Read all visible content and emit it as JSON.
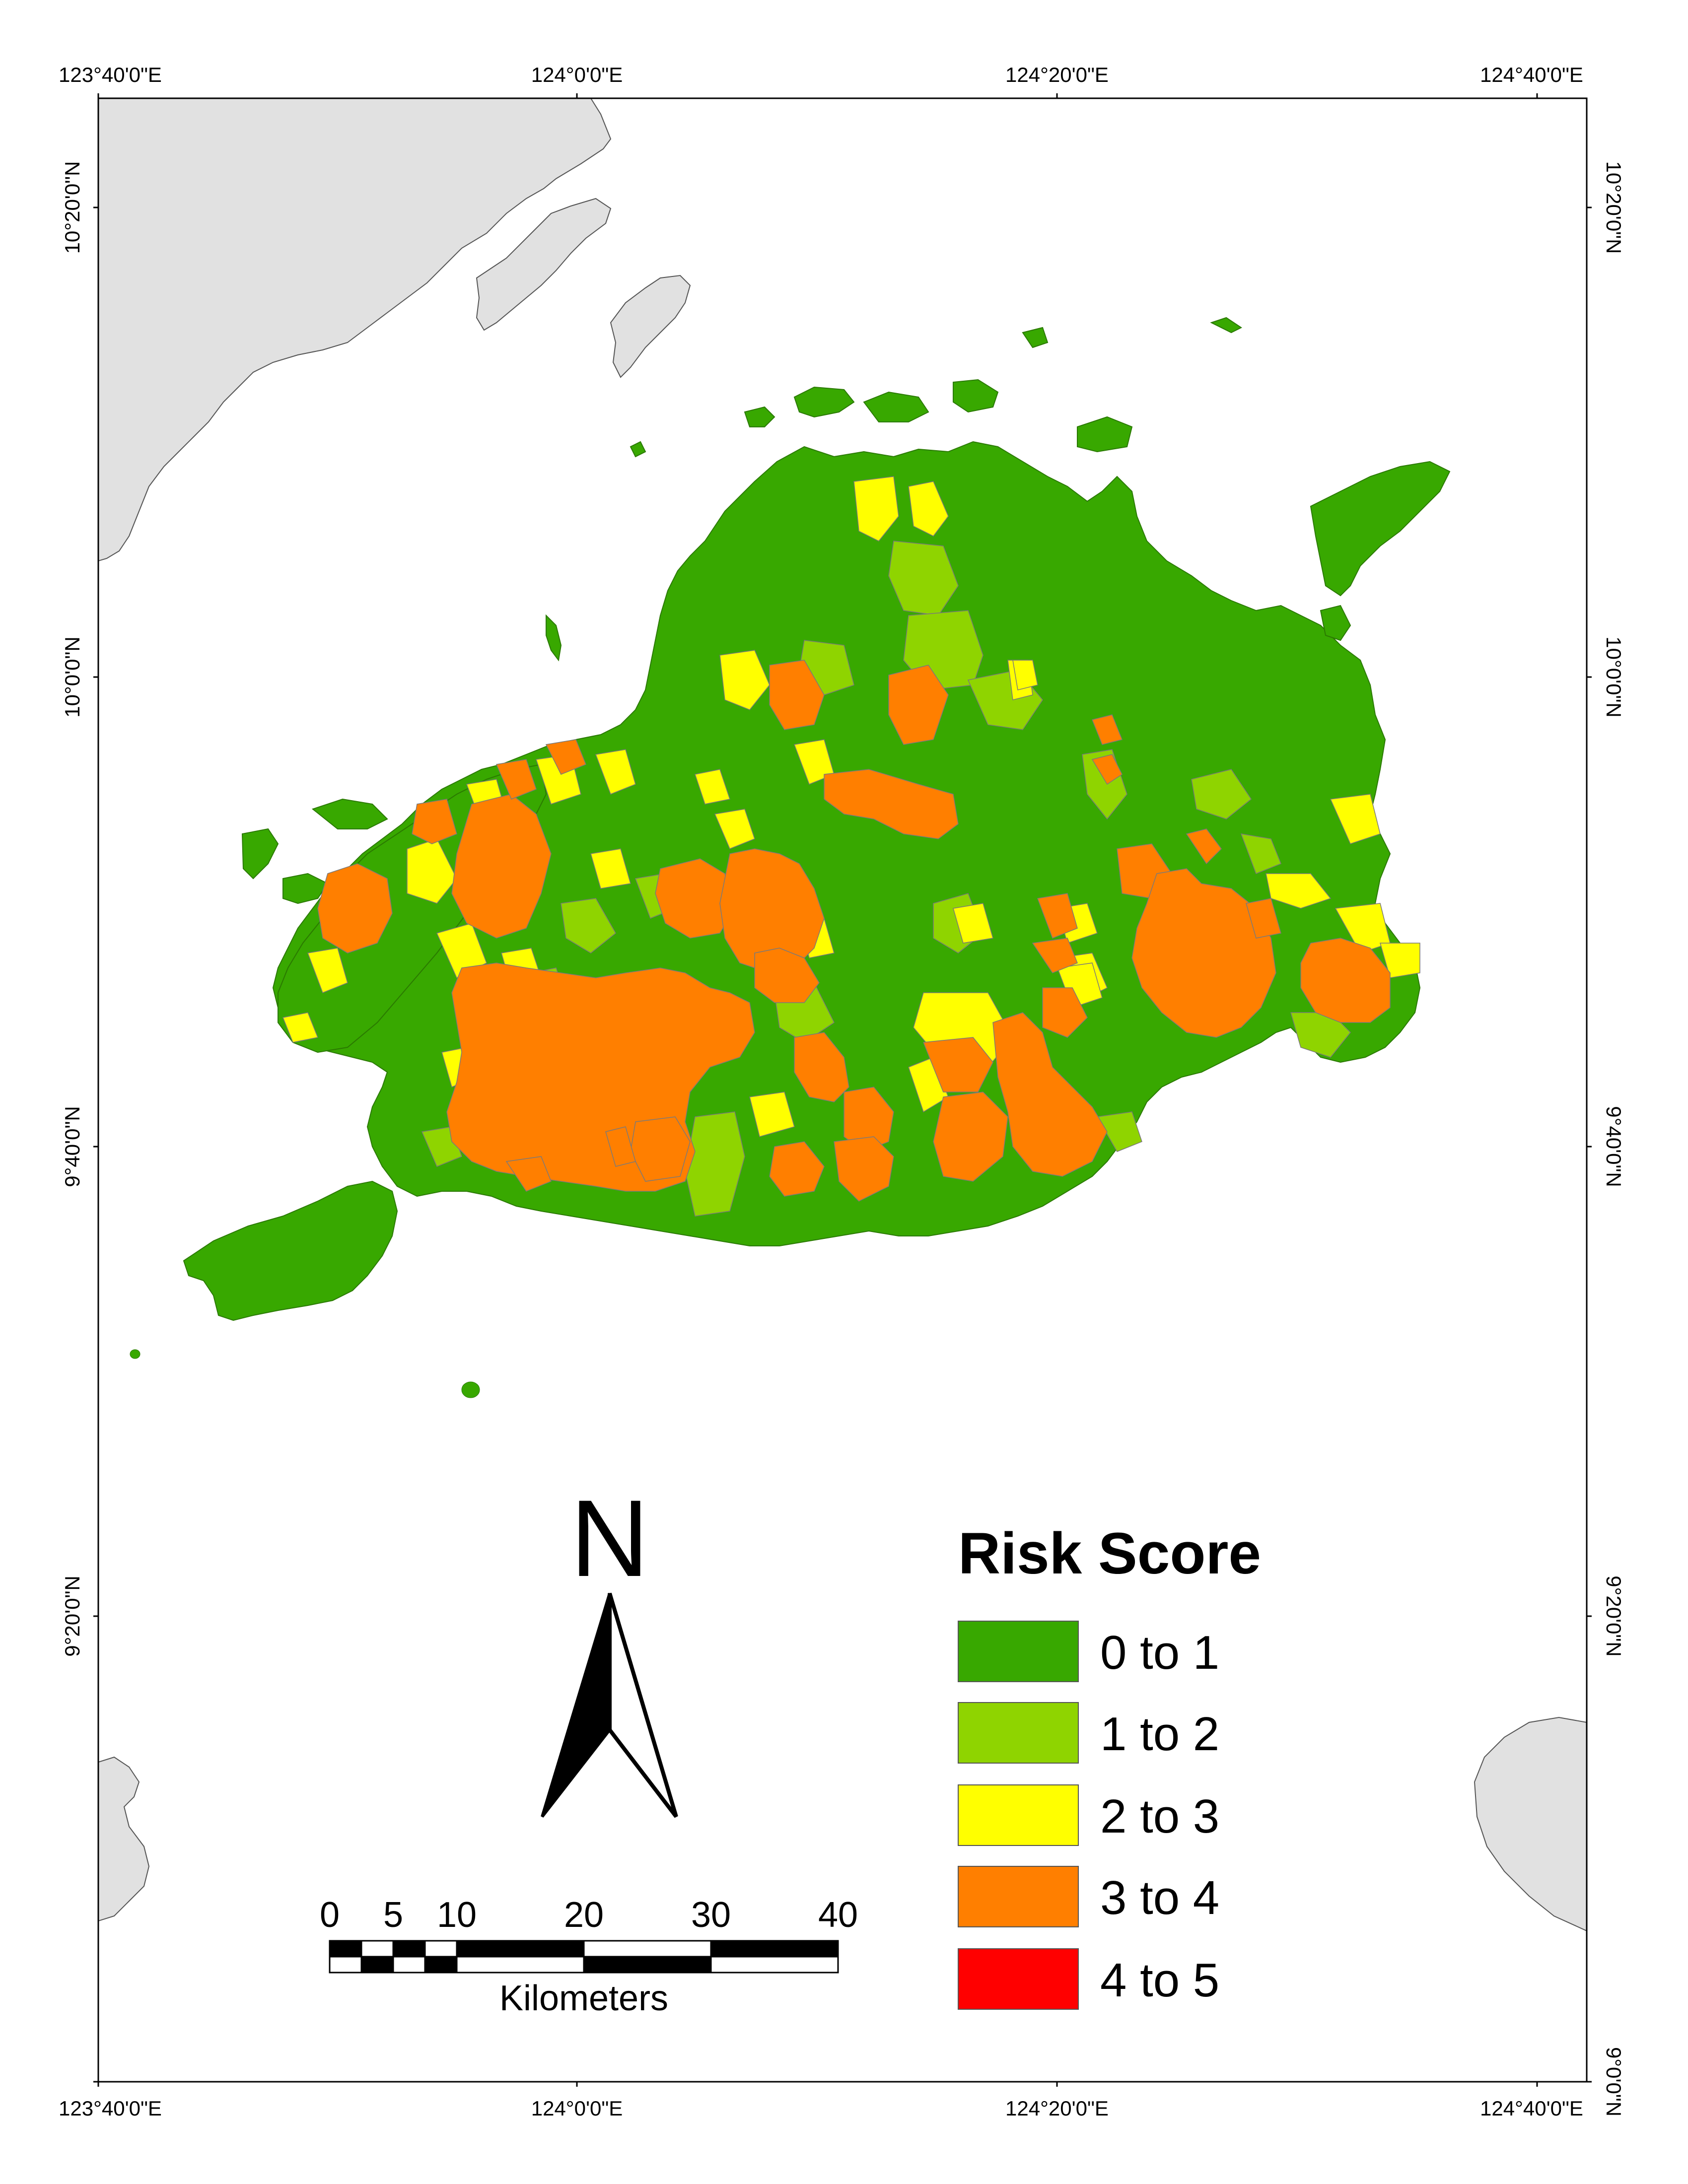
{
  "map": {
    "top_lon_labels": [
      "123°40'0\"E",
      "124°0'0\"E",
      "124°20'0\"E",
      "124°40'0\"E"
    ],
    "bottom_lon_labels": [
      "123°40'0\"E",
      "124°0'0\"E",
      "124°20'0\"E",
      "124°40'0\"E"
    ],
    "left_lat_labels": [
      "10°20'0\"N",
      "10°0'0\"N",
      "9°40'0\"N",
      "9°20'0\"N"
    ],
    "right_lat_labels": [
      "10°20'0\"N",
      "10°0'0\"N",
      "9°40'0\"N",
      "9°20'0\"N",
      "9°0'0\"N"
    ]
  },
  "north_arrow": {
    "label": "N"
  },
  "scale_bar": {
    "ticks": [
      "0",
      "5",
      "10",
      "20",
      "30",
      "40"
    ],
    "unit": "Kilometers"
  },
  "legend": {
    "title": "Risk Score",
    "items": [
      {
        "label": "0 to 1",
        "color": "#38a800"
      },
      {
        "label": "1 to 2",
        "color": "#8fd400"
      },
      {
        "label": "2 to 3",
        "color": "#ffff00"
      },
      {
        "label": "3 to 4",
        "color": "#ff7f00"
      },
      {
        "label": "4 to 5",
        "color": "#ff0000"
      }
    ]
  },
  "colors": {
    "land_other": "#e1e1e1",
    "water": "#ffffff",
    "frame": "#000000"
  }
}
